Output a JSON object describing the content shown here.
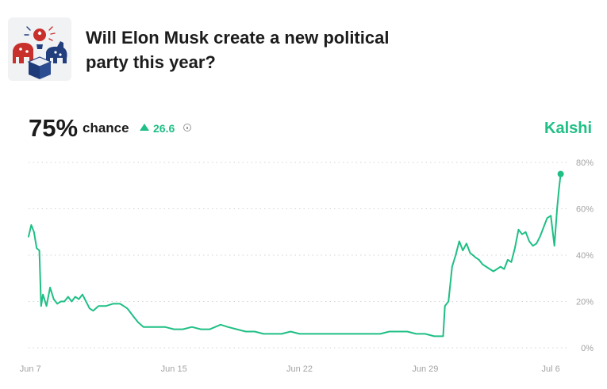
{
  "header": {
    "title": "Will Elon Musk create a new political party this year?",
    "logo_icon": "elephant-donkey-ballot-box-icon"
  },
  "stats": {
    "chance_value": "75%",
    "chance_label": "chance",
    "delta": "26.6",
    "delta_direction": "up",
    "info_icon": "info-circle-icon"
  },
  "brand": {
    "name": "Kalshi",
    "color": "#1fbf85"
  },
  "chart_data": {
    "type": "line",
    "title": "",
    "xlabel": "",
    "ylabel": "",
    "x_tick_labels": [
      "Jun 7",
      "Jun 15",
      "Jun 22",
      "Jun 29",
      "Jul 6"
    ],
    "x_tick_days": [
      0,
      8,
      15,
      22,
      29
    ],
    "y_tick_labels": [
      "0%",
      "20%",
      "40%",
      "60%",
      "80%"
    ],
    "y_tick_values": [
      0,
      20,
      40,
      60,
      80
    ],
    "xlim": [
      -0.1,
      29.7
    ],
    "ylim": [
      0,
      80
    ],
    "grid": "horizontal-dotted",
    "line_color": "#1fbf85",
    "series": [
      {
        "name": "",
        "x": [
          -0.1,
          0.05,
          0.2,
          0.35,
          0.5,
          0.6,
          0.7,
          0.9,
          1.1,
          1.3,
          1.5,
          1.7,
          1.9,
          2.1,
          2.3,
          2.5,
          2.7,
          2.9,
          3.1,
          3.3,
          3.5,
          3.8,
          4.2,
          4.6,
          5.0,
          5.2,
          5.4,
          5.6,
          5.8,
          6.0,
          6.3,
          6.6,
          7.0,
          7.5,
          8.0,
          8.5,
          9.0,
          9.5,
          10.0,
          10.3,
          10.6,
          11.0,
          11.5,
          12.0,
          12.5,
          13.0,
          13.5,
          14.0,
          14.5,
          15.0,
          16.0,
          16.5,
          17.0,
          17.5,
          18.0,
          19.0,
          19.5,
          20.0,
          20.5,
          21.0,
          21.5,
          22.0,
          22.5,
          22.8,
          23.0,
          23.1,
          23.3,
          23.5,
          23.7,
          23.9,
          24.1,
          24.3,
          24.5,
          24.8,
          25.0,
          25.2,
          25.4,
          25.6,
          25.8,
          26.0,
          26.2,
          26.4,
          26.6,
          26.8,
          27.0,
          27.2,
          27.4,
          27.6,
          27.8,
          28.0,
          28.2,
          28.4,
          28.6,
          28.8,
          29.0,
          29.2,
          29.35,
          29.45,
          29.55
        ],
        "values": [
          48,
          53,
          50,
          43,
          42,
          18,
          23,
          18,
          26,
          21,
          19,
          20,
          20,
          22,
          20,
          22,
          21,
          23,
          20,
          17,
          16,
          18,
          18,
          19,
          19,
          18,
          17,
          15,
          13,
          11,
          9,
          9,
          9,
          9,
          8,
          8,
          9,
          8,
          8,
          9,
          10,
          9,
          8,
          7,
          7,
          6,
          6,
          6,
          7,
          6,
          6,
          6,
          6,
          6,
          6,
          6,
          6,
          7,
          7,
          7,
          6,
          6,
          5,
          5,
          5,
          18,
          20,
          35,
          40,
          46,
          42,
          45,
          41,
          39,
          38,
          36,
          35,
          34,
          33,
          34,
          35,
          34,
          38,
          37,
          43,
          51,
          49,
          50,
          46,
          44,
          45,
          48,
          52,
          56,
          57,
          44,
          60,
          68,
          75
        ]
      }
    ],
    "end_marker": true
  }
}
